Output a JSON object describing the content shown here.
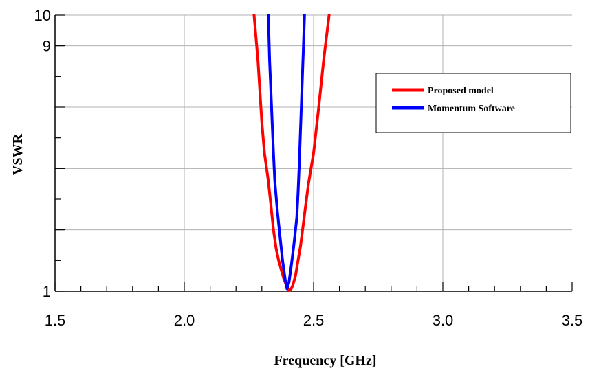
{
  "chart_data": {
    "type": "line",
    "xlabel": "Frequency [GHz]",
    "ylabel": "VSWR",
    "xlim": [
      1.5,
      3.5
    ],
    "ylim": [
      1,
      10
    ],
    "grid": true,
    "x_ticks": [
      {
        "value": 1.5,
        "label": "1.5"
      },
      {
        "value": 2.0,
        "label": "2.0"
      },
      {
        "value": 2.5,
        "label": "2.5"
      },
      {
        "value": 3.0,
        "label": "3.0"
      },
      {
        "value": 3.5,
        "label": "3.5"
      }
    ],
    "y_ticks": [
      {
        "value": 1,
        "label": "1"
      },
      {
        "value": 9,
        "label": "9"
      },
      {
        "value": 10,
        "label": "10"
      }
    ],
    "y_gridlines": [
      1,
      3,
      5,
      7,
      9,
      10
    ],
    "y_minor_ticks": [
      2,
      4,
      6,
      8
    ],
    "x_minor_step": 0.1,
    "legend_position": "upper-right",
    "series": [
      {
        "name": "Proposed model",
        "color": "#ff0000",
        "x": [
          2.27,
          2.285,
          2.3,
          2.31,
          2.325,
          2.335,
          2.345,
          2.355,
          2.365,
          2.375,
          2.385,
          2.395,
          2.405,
          2.412,
          2.42,
          2.43,
          2.44,
          2.45,
          2.465,
          2.48,
          2.5,
          2.52,
          2.54,
          2.56
        ],
        "y": [
          10,
          8.5,
          6.5,
          5.5,
          4.6,
          3.8,
          3.0,
          2.4,
          2.0,
          1.7,
          1.4,
          1.2,
          1.02,
          1.05,
          1.2,
          1.5,
          2.0,
          2.5,
          3.5,
          4.5,
          5.5,
          7.0,
          8.6,
          10
        ]
      },
      {
        "name": "Momentum Software",
        "color": "#0000ff",
        "x": [
          2.325,
          2.33,
          2.335,
          2.34,
          2.345,
          2.35,
          2.36,
          2.37,
          2.38,
          2.39,
          2.397,
          2.405,
          2.415,
          2.425,
          2.435,
          2.44,
          2.445,
          2.45,
          2.455,
          2.46,
          2.465
        ],
        "y": [
          10,
          8.5,
          7.5,
          6.5,
          5.5,
          4.6,
          3.6,
          2.8,
          2.0,
          1.4,
          1.08,
          1.3,
          1.9,
          2.6,
          3.4,
          4.2,
          5.2,
          6.4,
          7.6,
          8.8,
          10
        ]
      }
    ]
  }
}
